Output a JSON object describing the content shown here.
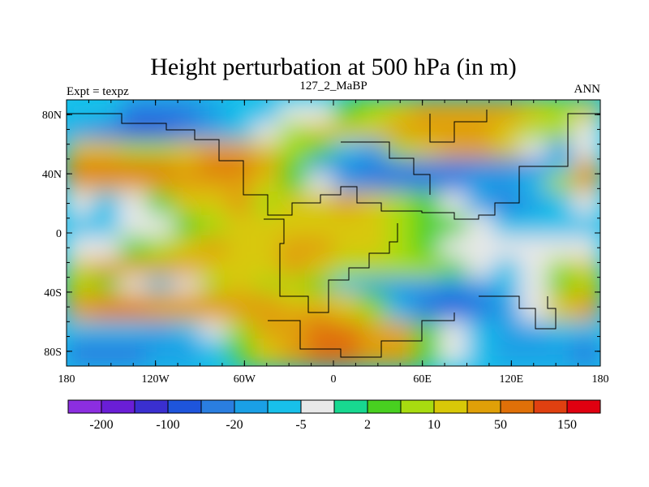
{
  "chart_data": {
    "type": "heatmap",
    "title": "Height perturbation at 500 hPa (in m)",
    "left_label": "Expt = texpz",
    "center_label": "127_2_MaBP",
    "right_label": "ANN",
    "x_range": [
      -180,
      180
    ],
    "y_range": [
      -90,
      90
    ],
    "x_ticks": [
      {
        "value": -180,
        "label": "180"
      },
      {
        "value": -120,
        "label": "120W"
      },
      {
        "value": -60,
        "label": "60W"
      },
      {
        "value": 0,
        "label": "0"
      },
      {
        "value": 60,
        "label": "60E"
      },
      {
        "value": 120,
        "label": "120E"
      },
      {
        "value": 180,
        "label": "180"
      }
    ],
    "y_ticks": [
      {
        "value": 80,
        "label": "80N"
      },
      {
        "value": 40,
        "label": "40N"
      },
      {
        "value": 0,
        "label": "0"
      },
      {
        "value": -40,
        "label": "40S"
      },
      {
        "value": -80,
        "label": "80S"
      }
    ],
    "colorbar": {
      "colors": [
        "#8c2ee0",
        "#6a1ed6",
        "#3a2fd0",
        "#1e55dc",
        "#2a7ee0",
        "#1aa0e6",
        "#18c0ea",
        "#e8e8e8",
        "#18d890",
        "#48d020",
        "#a8dc10",
        "#d8c808",
        "#e0a008",
        "#e07008",
        "#e04010",
        "#e00010"
      ],
      "tick_labels": [
        "-200",
        "-100",
        "-20",
        "-5",
        "2",
        "10",
        "50",
        "150"
      ]
    },
    "field": [
      {
        "lat": 80,
        "values": [
          -10,
          -10,
          -30,
          -30,
          -30,
          -20,
          -10,
          -10,
          -5,
          -5,
          2,
          5,
          10,
          20,
          20,
          30,
          20,
          10,
          5,
          10
        ]
      },
      {
        "lat": 70,
        "values": [
          -20,
          -30,
          -60,
          -60,
          -40,
          -20,
          -10,
          -5,
          5,
          10,
          10,
          10,
          20,
          30,
          30,
          20,
          10,
          5,
          5,
          -5
        ]
      },
      {
        "lat": 55,
        "values": [
          10,
          10,
          5,
          5,
          10,
          20,
          20,
          10,
          5,
          2,
          -10,
          -20,
          5,
          10,
          20,
          20,
          10,
          -5,
          -20,
          -5
        ]
      },
      {
        "lat": 45,
        "values": [
          50,
          50,
          60,
          50,
          40,
          60,
          50,
          20,
          2,
          -20,
          -30,
          -30,
          -40,
          -40,
          -30,
          -30,
          -40,
          -30,
          -10,
          30
        ]
      },
      {
        "lat": 35,
        "values": [
          30,
          30,
          40,
          30,
          20,
          30,
          20,
          10,
          2,
          -5,
          -20,
          -30,
          -40,
          -40,
          -30,
          -20,
          -20,
          -10,
          5,
          30
        ]
      },
      {
        "lat": 20,
        "values": [
          -5,
          -10,
          -5,
          2,
          10,
          10,
          20,
          5,
          10,
          10,
          20,
          10,
          5,
          2,
          -5,
          -20,
          -30,
          -20,
          -10,
          -5
        ]
      },
      {
        "lat": 5,
        "values": [
          -10,
          -10,
          -5,
          -5,
          2,
          5,
          10,
          10,
          10,
          10,
          10,
          10,
          5,
          2,
          2,
          -5,
          -10,
          -10,
          -10,
          -10
        ]
      },
      {
        "lat": -10,
        "values": [
          -5,
          -5,
          2,
          5,
          10,
          20,
          10,
          10,
          20,
          20,
          10,
          10,
          5,
          2,
          -5,
          -5,
          -5,
          -5,
          -5,
          -5
        ]
      },
      {
        "lat": -25,
        "values": [
          10,
          20,
          20,
          20,
          20,
          10,
          10,
          10,
          20,
          10,
          5,
          5,
          5,
          5,
          2,
          -5,
          -10,
          -5,
          5,
          10
        ]
      },
      {
        "lat": -35,
        "values": [
          5,
          2,
          -5,
          -10,
          -5,
          5,
          10,
          5,
          5,
          2,
          -10,
          -20,
          -20,
          -20,
          -20,
          -20,
          -10,
          -5,
          2,
          5
        ]
      },
      {
        "lat": -45,
        "values": [
          20,
          30,
          30,
          30,
          30,
          20,
          20,
          20,
          10,
          10,
          10,
          2,
          -20,
          -50,
          -60,
          -40,
          -20,
          -5,
          10,
          20
        ]
      },
      {
        "lat": -55,
        "values": [
          40,
          50,
          50,
          40,
          40,
          30,
          20,
          30,
          30,
          20,
          10,
          5,
          -10,
          -30,
          -40,
          -30,
          -20,
          -5,
          10,
          30
        ]
      },
      {
        "lat": -65,
        "values": [
          -10,
          -10,
          -10,
          -20,
          -10,
          -5,
          5,
          20,
          30,
          50,
          60,
          40,
          20,
          2,
          -5,
          -10,
          -20,
          -20,
          -10,
          -10
        ]
      },
      {
        "lat": -78,
        "values": [
          -30,
          -30,
          -30,
          -20,
          -20,
          -10,
          2,
          10,
          20,
          50,
          60,
          40,
          20,
          2,
          -5,
          -10,
          -20,
          -20,
          -20,
          -30
        ]
      }
    ]
  }
}
